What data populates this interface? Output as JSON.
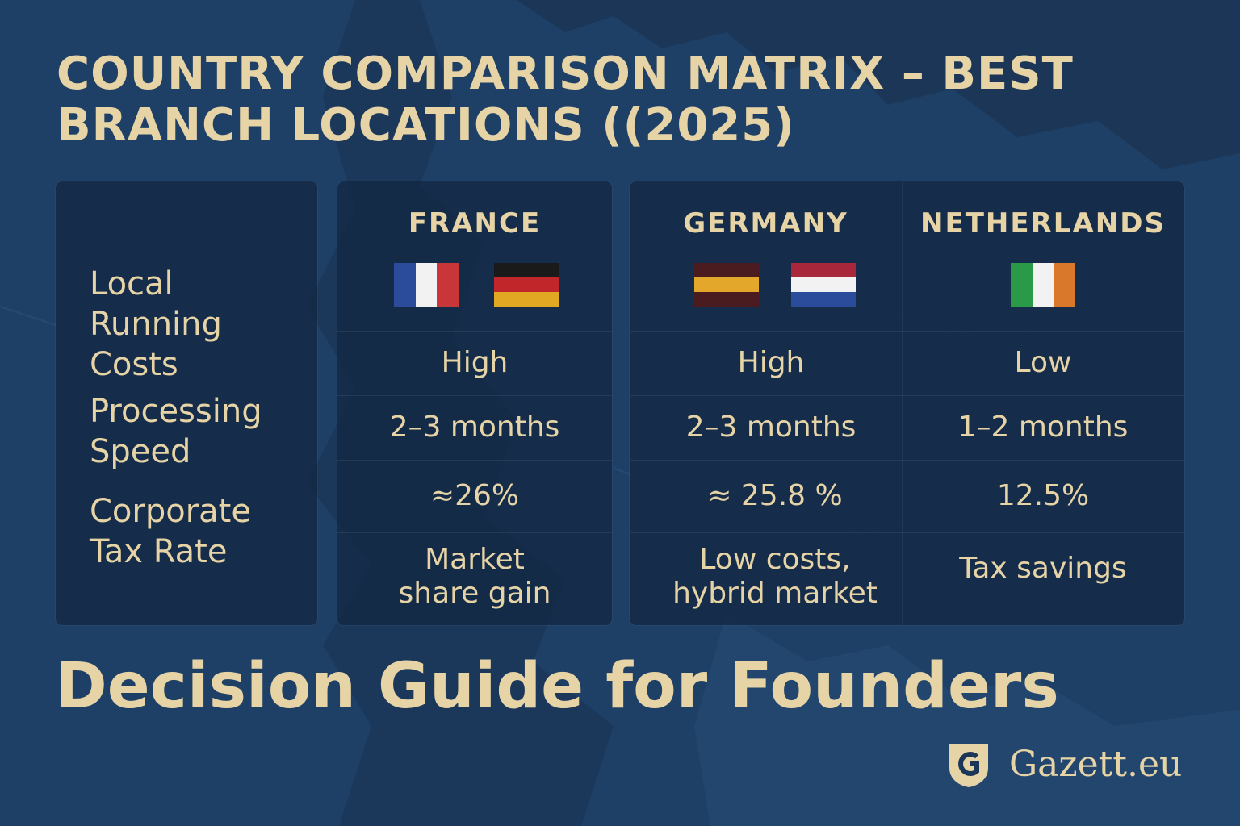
{
  "title": "COUNTRY COMPARISON MATRIX – BEST BRANCH LOCATIONS ((2025)",
  "row_labels": {
    "costs": [
      "Local",
      "Running Costs"
    ],
    "speed": [
      "Processing",
      "Speed"
    ],
    "tax": [
      "Corporate",
      "Tax Rate"
    ]
  },
  "columns": [
    {
      "country": "FRANCE",
      "flags": [
        "france-flag",
        "germany-flag"
      ],
      "costs": "High",
      "speed": "2–3 months",
      "tax": "≈26%",
      "benefit": [
        "Market",
        "share gain"
      ]
    },
    {
      "country": "GERMANY",
      "flags": [
        "germany-flag-variant",
        "netherlands-flag"
      ],
      "costs": "High",
      "speed": "2–3 months",
      "tax": "≈ 25.8 %",
      "benefit": [
        "Low costs,",
        "hybrid market"
      ]
    },
    {
      "country": "NETHERLANDS",
      "flags": [
        "ireland-flag"
      ],
      "costs": "Low",
      "speed": "1–2 months",
      "tax": "12.5%",
      "benefit": [
        "Tax savings"
      ]
    }
  ],
  "footer_title": "Decision Guide for Founders",
  "brand": {
    "name": "Gazett.eu",
    "icon": "gazett-shield-logo"
  },
  "colors": {
    "background": "#1b3657",
    "panel": "#132844",
    "accent_text": "#e6d3a6"
  }
}
